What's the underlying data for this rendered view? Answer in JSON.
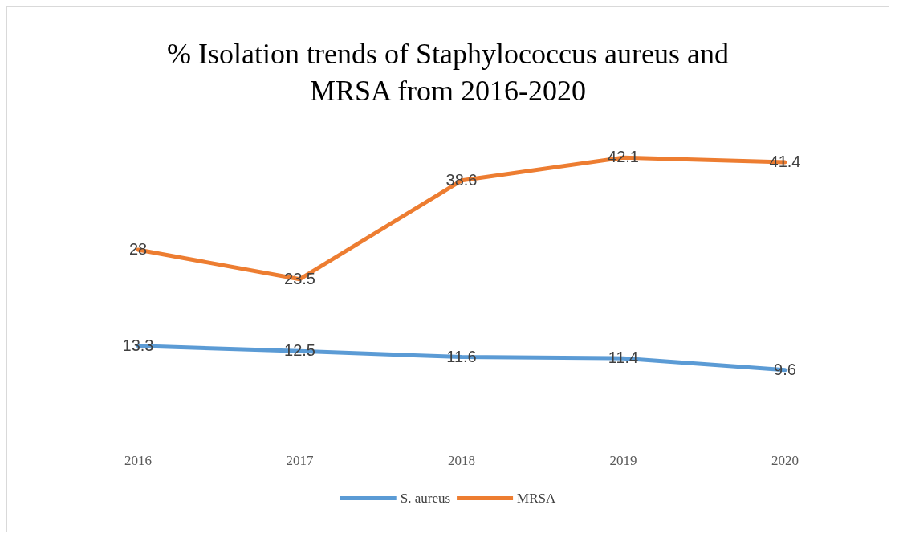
{
  "chart_data": {
    "type": "line",
    "title": "% Isolation trends of Staphylococcus aureus and\nMRSA from 2016-2020",
    "categories": [
      "2016",
      "2017",
      "2018",
      "2019",
      "2020"
    ],
    "series": [
      {
        "name": "S. aureus",
        "color": "#5b9bd5",
        "values": [
          13.3,
          12.5,
          11.6,
          11.4,
          9.6
        ]
      },
      {
        "name": "MRSA",
        "color": "#ed7d31",
        "values": [
          28,
          23.5,
          38.6,
          42.1,
          41.4
        ]
      }
    ],
    "data_labels": true,
    "legend": "bottom",
    "grid": false,
    "marker": "none",
    "tick_labels": "x"
  }
}
